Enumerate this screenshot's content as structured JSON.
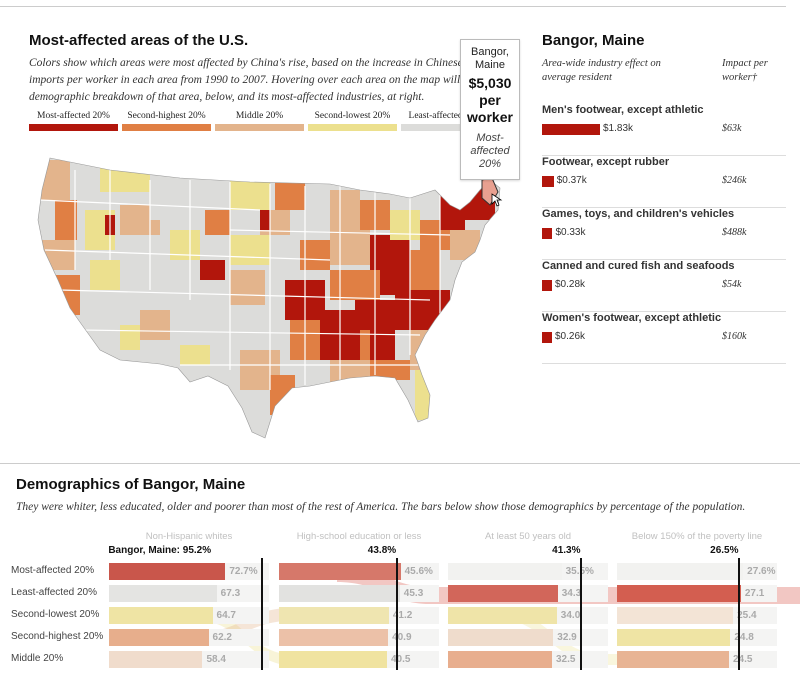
{
  "map_section": {
    "title": "Most-affected areas of the U.S.",
    "description": "Colors show which areas were most affected by China's rise, based on the increase in Chinese imports per worker in each area from 1990 to 2007. Hovering over each area on the map will show a demographic breakdown of that area, below, and its most-affected industries, at right.",
    "legend": [
      {
        "label": "Most-affected 20%",
        "color": "#b2160c"
      },
      {
        "label": "Second-highest 20%",
        "color": "#e07f44"
      },
      {
        "label": "Middle 20%",
        "color": "#e3b48c"
      },
      {
        "label": "Second-lowest 20%",
        "color": "#ece08e"
      },
      {
        "label": "Least-affected 20%",
        "color": "#dcdcda"
      }
    ]
  },
  "tooltip": {
    "place": "Bangor, Maine",
    "value": "$5,030 per worker",
    "category": "Most-affected 20%"
  },
  "industry_panel": {
    "title": "Bangor, Maine",
    "col_left": "Area-wide industry effect on average resident",
    "col_right": "Impact per worker†",
    "industries": [
      {
        "name": "Men's footwear, except athletic",
        "value_label": "$1.83k",
        "value": 1.83,
        "impact": "$63k"
      },
      {
        "name": "Footwear, except rubber",
        "value_label": "$0.37k",
        "value": 0.37,
        "impact": "$246k"
      },
      {
        "name": "Games, toys, and children's vehicles",
        "value_label": "$0.33k",
        "value": 0.33,
        "impact": "$488k"
      },
      {
        "name": "Canned and cured fish and seafoods",
        "value_label": "$0.28k",
        "value": 0.28,
        "impact": "$54k"
      },
      {
        "name": "Women's footwear, except athletic",
        "value_label": "$0.26k",
        "value": 0.26,
        "impact": "$160k"
      }
    ]
  },
  "demographics": {
    "title": "Demographics of Bangor, Maine",
    "description": "They were whiter, less educated, older and poorer than most of the rest of America. The bars below show those demographics by percentage of the population.",
    "rows": [
      "Most-affected 20%",
      "Least-affected 20%",
      "Second-lowest 20%",
      "Second-highest 20%",
      "Middle 20%"
    ],
    "columns": [
      {
        "header": "Non-Hispanic whites",
        "callout": "Bangor, Maine: 95.2%",
        "bangor": 95.2,
        "values": [
          "72.7%",
          "67.3",
          "64.7",
          "62.2",
          "58.4"
        ]
      },
      {
        "header": "High-school education or less",
        "callout": "43.8%",
        "bangor": 43.8,
        "values": [
          "45.6%",
          "45.3",
          "41.2",
          "40.9",
          "40.5"
        ]
      },
      {
        "header": "At least 50 years old",
        "callout": "41.3%",
        "bangor": 41.3,
        "values": [
          "35.5%",
          "34.3",
          "34.0",
          "32.9",
          "32.5"
        ]
      },
      {
        "header": "Below 150% of the poverty line",
        "callout": "26.5%",
        "bangor": 26.5,
        "values": [
          "27.6%",
          "27.1",
          "25.4",
          "24.8",
          "24.5"
        ]
      }
    ]
  }
}
